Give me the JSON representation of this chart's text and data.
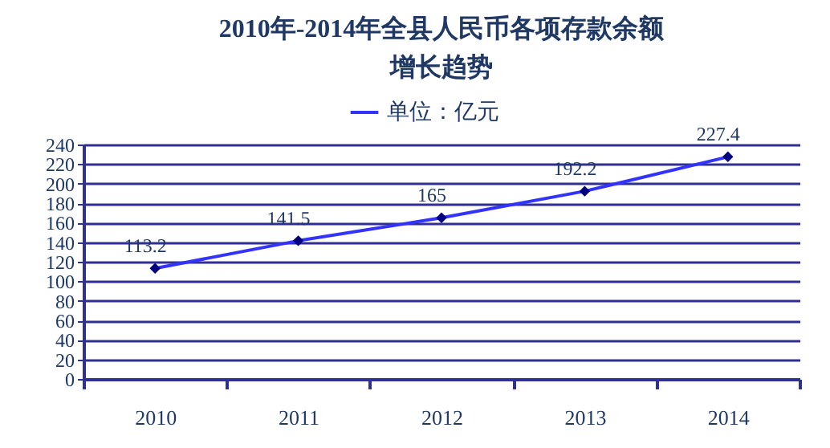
{
  "chart_data": {
    "type": "line",
    "title": "2010年-2014年全县人民币各项存款余额增长趋势",
    "categories": [
      "2010",
      "2011",
      "2012",
      "2013",
      "2014"
    ],
    "series": [
      {
        "name": "单位：亿元",
        "color": "#3333ff",
        "values": [
          113.2,
          141.5,
          165,
          192.2,
          227.4
        ]
      }
    ],
    "ylim": [
      0,
      240
    ],
    "yticks": [
      0,
      20,
      40,
      60,
      80,
      100,
      120,
      140,
      160,
      180,
      200,
      220,
      240
    ],
    "grid": "y",
    "legend": "top",
    "marker": "diamond",
    "data_labels": true
  }
}
